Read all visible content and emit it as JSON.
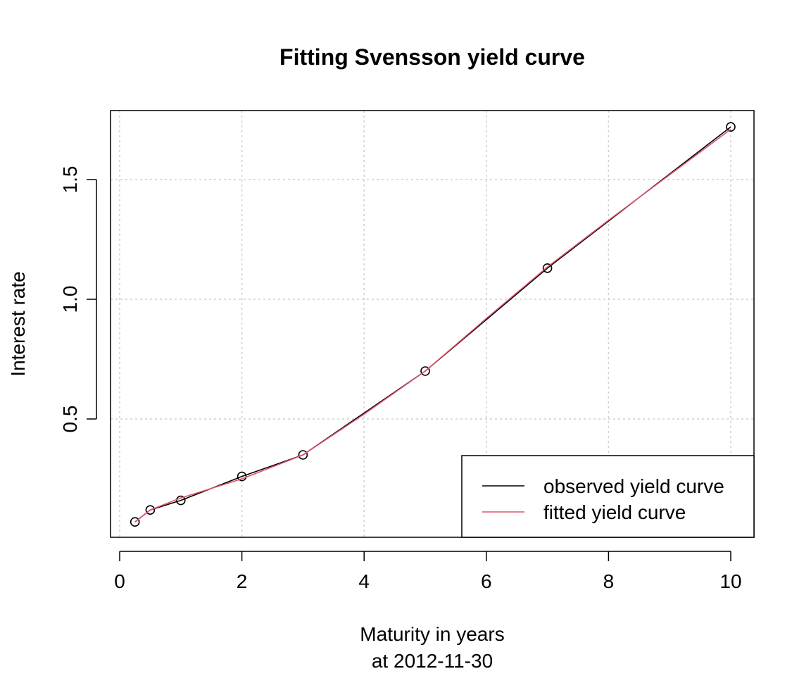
{
  "chart_data": {
    "type": "line",
    "title": "Fitting Svensson yield curve",
    "xlabel": "Maturity in years",
    "xlabel_sub": "at 2012-11-30",
    "ylabel": "Interest rate",
    "xlim": [
      0,
      10
    ],
    "ylim": [
      0,
      1.75
    ],
    "xticks": [
      0,
      2,
      4,
      6,
      8,
      10
    ],
    "xtick_labels": [
      "0",
      "2",
      "4",
      "6",
      "8",
      "10"
    ],
    "yticks": [
      0.5,
      1.0,
      1.5
    ],
    "ytick_labels": [
      "0.5",
      "1.0",
      "1.5"
    ],
    "grid": true,
    "legend_position": "bottom-right",
    "series": [
      {
        "name": "observed yield curve",
        "color": "#000000",
        "markers": true,
        "x": [
          0.25,
          0.5,
          1,
          2,
          3,
          5,
          7,
          10
        ],
        "y": [
          0.07,
          0.12,
          0.16,
          0.26,
          0.35,
          0.7,
          1.13,
          1.72
        ]
      },
      {
        "name": "fitted yield curve",
        "color": "#df536b",
        "markers": false,
        "x": [
          0.25,
          0.5,
          1,
          2,
          3,
          4,
          5,
          6,
          7,
          8,
          9,
          10
        ],
        "y": [
          0.07,
          0.12,
          0.17,
          0.25,
          0.35,
          0.52,
          0.7,
          0.92,
          1.135,
          1.33,
          1.52,
          1.71
        ]
      }
    ]
  }
}
